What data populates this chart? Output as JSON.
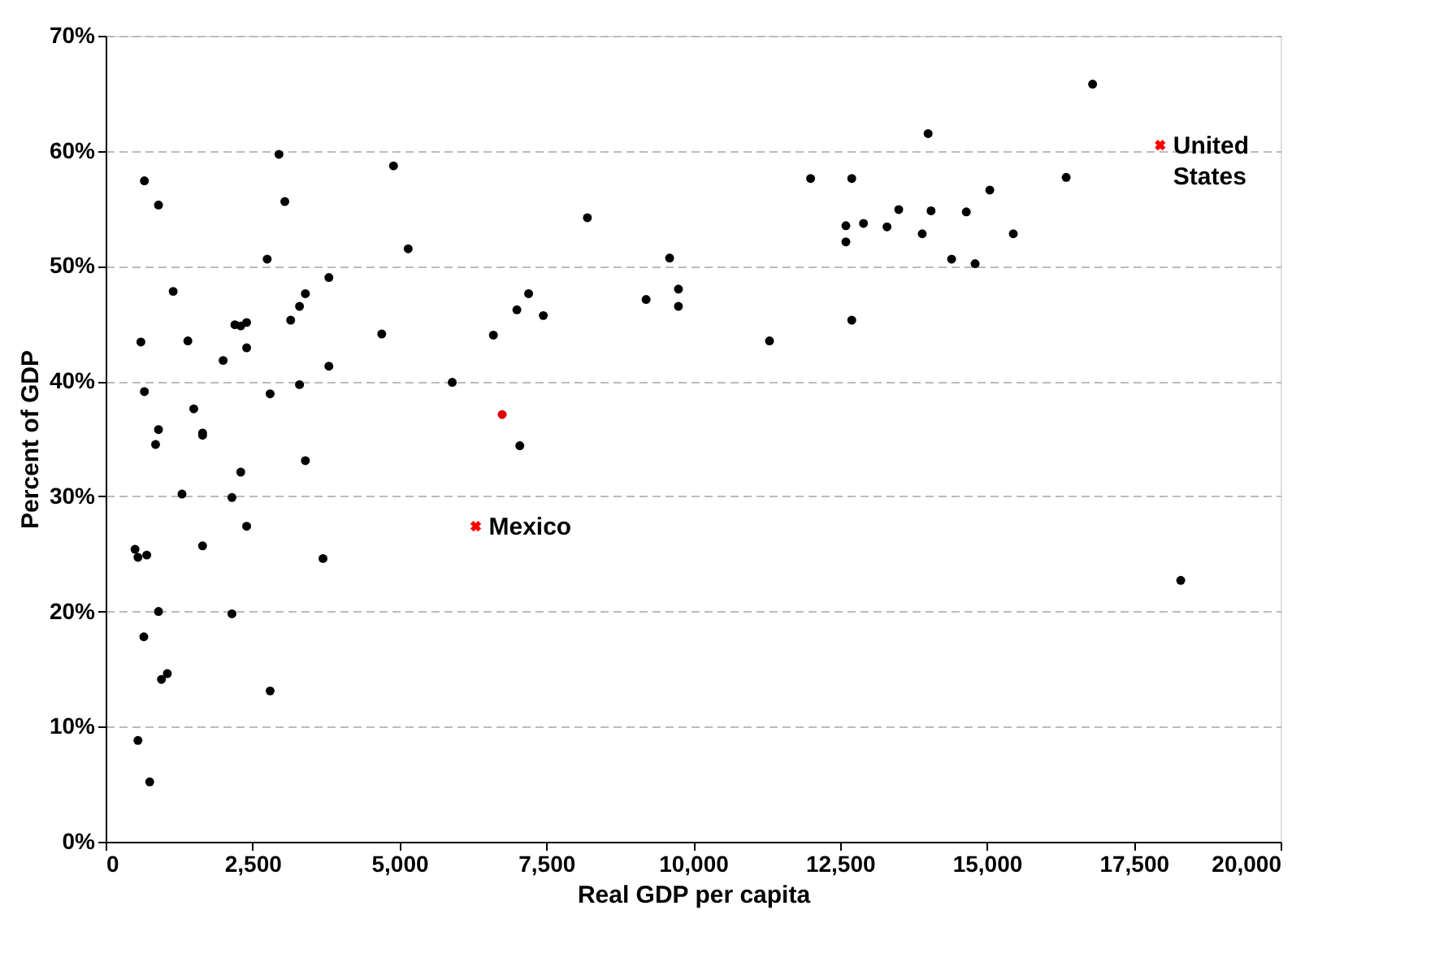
{
  "chart_data": {
    "type": "scatter",
    "xlabel": "Real GDP per capita",
    "ylabel": "Percent of GDP",
    "xlim": [
      0,
      20000
    ],
    "ylim": [
      0,
      70
    ],
    "xticks": [
      0,
      {
        "value": 2500,
        "label": "2,500"
      },
      {
        "value": 5000,
        "label": "5,000"
      },
      {
        "value": 7500,
        "label": "7,500"
      },
      {
        "value": 10000,
        "label": "10,000"
      },
      {
        "value": 12500,
        "label": "12,500"
      },
      {
        "value": 15000,
        "label": "15,000"
      },
      {
        "value": 17500,
        "label": "17,500"
      },
      {
        "value": 20000,
        "label": "20,000"
      }
    ],
    "yticks": [
      {
        "value": 0,
        "label": "0%"
      },
      {
        "value": 10,
        "label": "10%"
      },
      {
        "value": 20,
        "label": "20%"
      },
      {
        "value": 30,
        "label": "30%"
      },
      {
        "value": 40,
        "label": "40%"
      },
      {
        "value": 50,
        "label": "50%"
      },
      {
        "value": 60,
        "label": "60%"
      },
      {
        "value": 70,
        "label": "70%"
      }
    ],
    "grid": "y",
    "series": [
      {
        "color": "#000000",
        "marker": "circle",
        "x": [
          660,
          900,
          2950,
          3050,
          4900,
          1150,
          2750,
          3800,
          3400,
          3300,
          3150,
          2200,
          2300,
          2400,
          2400,
          4700,
          5150,
          600,
          1400,
          2000,
          3800,
          3300,
          2800,
          660,
          1500,
          5900,
          6600,
          7000,
          7200,
          7450,
          7050,
          8200,
          9200,
          9600,
          9750,
          9750,
          11300,
          12000,
          12600,
          12600,
          12700,
          12700,
          12900,
          13300,
          13500,
          13900,
          14000,
          14050,
          14400,
          14650,
          14800,
          15050,
          15450,
          16350,
          16800,
          18300,
          3400,
          900,
          850,
          1650,
          1650,
          1300,
          2150,
          2300,
          2400,
          1650,
          3700,
          500,
          550,
          700,
          900,
          650,
          2150,
          550,
          950,
          1050,
          2800,
          750
        ],
        "values": [
          57.4,
          55.3,
          59.7,
          55.6,
          58.7,
          47.8,
          50.6,
          49.0,
          47.6,
          46.5,
          45.3,
          44.9,
          44.8,
          45.1,
          42.9,
          44.1,
          51.5,
          43.4,
          43.5,
          41.8,
          41.3,
          39.7,
          38.9,
          39.1,
          37.6,
          39.9,
          44.0,
          46.2,
          47.6,
          45.7,
          34.4,
          54.2,
          47.1,
          50.7,
          48.0,
          46.5,
          43.5,
          57.6,
          53.5,
          52.1,
          57.6,
          45.3,
          53.7,
          53.4,
          54.9,
          52.8,
          61.5,
          54.8,
          50.6,
          54.7,
          50.2,
          56.6,
          52.8,
          57.7,
          65.8,
          22.7,
          33.1,
          35.8,
          34.5,
          35.5,
          35.3,
          30.2,
          29.9,
          32.1,
          27.4,
          25.7,
          24.6,
          25.4,
          24.7,
          24.9,
          20.0,
          17.8,
          19.8,
          8.8,
          14.1,
          14.6,
          13.1,
          5.2
        ]
      },
      {
        "color": "#e00000",
        "marker": "circle",
        "x": [
          6750
        ],
        "values": [
          37.1
        ]
      },
      {
        "color": "#ff0000",
        "marker": "cross",
        "x": [
          6300,
          17950
        ],
        "values": [
          27.4,
          60.5
        ]
      }
    ],
    "annotations": [
      {
        "text": "Mexico",
        "x": 6300,
        "y": 27.4
      },
      {
        "text": "United States",
        "x": 17950,
        "y": 60.5
      }
    ]
  }
}
